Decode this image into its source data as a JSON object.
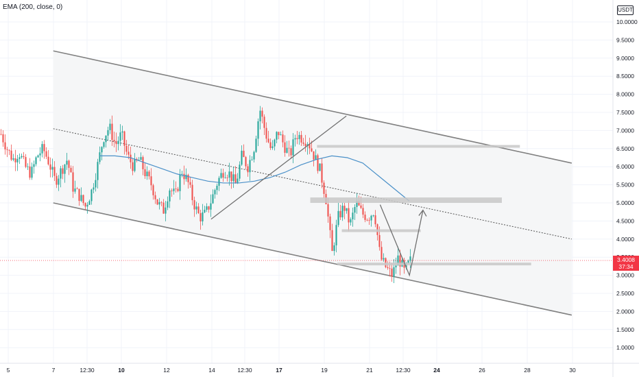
{
  "indicator_label": "EMA (200, close, 0)",
  "currency_label": "USDT",
  "last_price_label": "3.4008",
  "countdown_label": "37:34",
  "colors": {
    "up": "#26a69a",
    "down": "#ef5350",
    "ema": "#4a90c8",
    "channel": "#808080",
    "channel_fill": "#f5f6f7",
    "zone": "#c8c8c8",
    "last_price": "#f23645"
  },
  "chart_data": {
    "type": "candlestick",
    "title": "",
    "x_ticks": [
      "5",
      "7",
      "12:30",
      "10",
      "12",
      "14",
      "12:30",
      "17",
      "19",
      "21",
      "12:30",
      "24",
      "26",
      "28",
      "30"
    ],
    "y_ticks": [
      "1.0000",
      "1.5000",
      "2.0000",
      "2.5000",
      "3.0000",
      "3.5000",
      "4.0000",
      "4.5000",
      "5.0000",
      "5.5000",
      "6.0000",
      "6.5000",
      "7.0000",
      "7.5000",
      "8.0000",
      "8.5000",
      "9.0000",
      "9.5000",
      "10.0000"
    ],
    "ylim": [
      0.6,
      10.4
    ],
    "price_path": [
      6.9,
      6.5,
      6.2,
      6.4,
      6.0,
      5.8,
      6.3,
      6.5,
      6.1,
      5.6,
      5.9,
      6.2,
      5.4,
      5.2,
      4.9,
      5.3,
      6.0,
      6.8,
      7.1,
      6.6,
      6.9,
      6.3,
      6.0,
      6.2,
      5.8,
      5.5,
      5.0,
      4.8,
      5.4,
      5.2,
      5.9,
      5.6,
      5.0,
      4.6,
      4.7,
      5.1,
      5.6,
      5.9,
      5.8,
      5.5,
      6.3,
      6.0,
      6.5,
      7.6,
      6.9,
      6.4,
      7.0,
      6.6,
      6.3,
      6.9,
      6.8,
      6.7,
      6.3,
      5.9,
      5.1,
      3.6,
      4.6,
      4.9,
      4.4,
      5.0,
      4.7,
      4.6,
      4.8,
      3.5,
      3.2,
      3.0,
      3.5,
      3.1,
      3.4
    ],
    "ema_200": [
      6.3,
      6.3,
      6.25,
      6.1,
      5.95,
      5.8,
      5.7,
      5.6,
      5.55,
      5.55,
      5.6,
      5.7,
      5.85,
      6.05,
      6.2,
      6.3,
      6.25,
      6.1,
      5.75,
      5.4,
      5.05
    ],
    "last_price": 3.4008,
    "annotations": {
      "channel_upper": [
        [
          7.0,
          9.2
        ],
        [
          30.0,
          6.1
        ]
      ],
      "channel_lower": [
        [
          7.0,
          5.0
        ],
        [
          30.0,
          1.9
        ]
      ],
      "channel_mid": [
        [
          7.0,
          7.05
        ],
        [
          30.0,
          4.0
        ]
      ],
      "trend_line": [
        [
          14.0,
          4.55
        ],
        [
          20.0,
          7.4
        ]
      ],
      "zones": [
        {
          "x": [
            18.7,
            27.7
          ],
          "y": [
            6.55,
            6.6
          ]
        },
        {
          "x": [
            18.4,
            26.9
          ],
          "y": [
            5.0,
            5.15
          ]
        },
        {
          "x": [
            19.8,
            23.3
          ],
          "y": [
            4.24,
            4.27
          ]
        },
        {
          "x": [
            19.6,
            28.2
          ],
          "y": [
            3.33,
            3.35
          ]
        }
      ],
      "projection": [
        [
          21.5,
          4.95
        ],
        [
          22.8,
          3.0
        ],
        [
          23.4,
          4.8
        ]
      ]
    }
  }
}
